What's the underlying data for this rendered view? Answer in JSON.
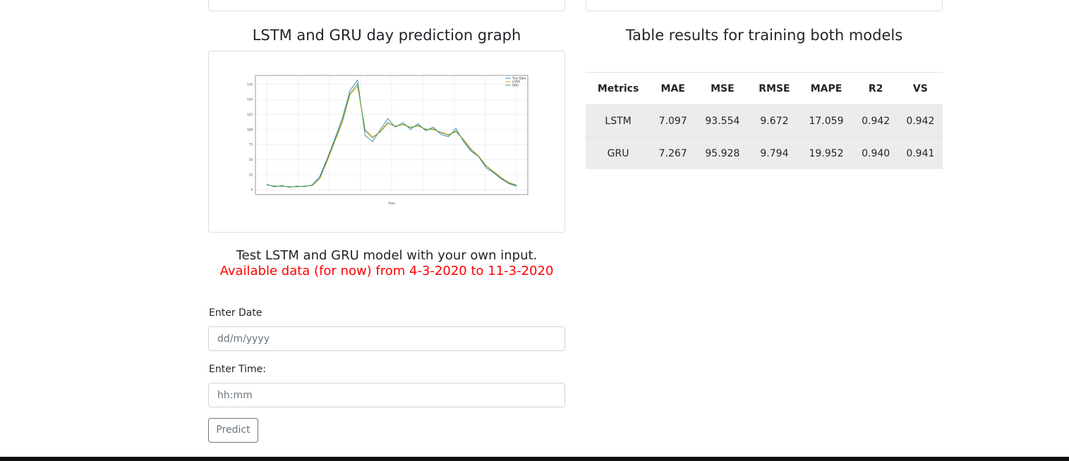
{
  "graph_title": "LSTM and GRU day prediction graph",
  "chart_data": {
    "type": "line",
    "x_label": "Time",
    "series": [
      {
        "name": "True Data",
        "color": "#1f77b4",
        "values": [
          9,
          5,
          7,
          4,
          6,
          5,
          8,
          22,
          52,
          85,
          120,
          165,
          182,
          90,
          80,
          100,
          118,
          104,
          112,
          100,
          110,
          98,
          104,
          92,
          88,
          102,
          80,
          64,
          55,
          36,
          28,
          18,
          10,
          6
        ]
      },
      {
        "name": "LSTM",
        "color": "#ff7f0e",
        "values": [
          8,
          6,
          6,
          5,
          5,
          6,
          7,
          18,
          48,
          80,
          112,
          158,
          172,
          100,
          88,
          96,
          110,
          106,
          108,
          104,
          106,
          101,
          100,
          96,
          92,
          96,
          84,
          68,
          56,
          40,
          30,
          20,
          12,
          8
        ]
      },
      {
        "name": "GRU",
        "color": "#2ca02c",
        "values": [
          8,
          6,
          6,
          5,
          5,
          6,
          7,
          19,
          50,
          82,
          115,
          160,
          176,
          98,
          86,
          97,
          112,
          105,
          109,
          103,
          107,
          100,
          101,
          95,
          90,
          98,
          82,
          66,
          55,
          39,
          29,
          19,
          11,
          7
        ]
      }
    ],
    "ylim": [
      -8,
      190
    ],
    "yticks": [
      0,
      25,
      50,
      75,
      100,
      125,
      150,
      175
    ],
    "grid": true
  },
  "table_title": "Table results for training both models",
  "table": {
    "header": [
      "Metrics",
      "MAE",
      "MSE",
      "RMSE",
      "MAPE",
      "R2",
      "VS"
    ],
    "rows": [
      [
        "LSTM",
        "7.097",
        "93.554",
        "9.672",
        "17.059",
        "0.942",
        "0.942"
      ],
      [
        "GRU",
        "7.267",
        "95.928",
        "9.794",
        "19.952",
        "0.940",
        "0.941"
      ]
    ]
  },
  "form": {
    "heading": "Test LSTM and GRU model with your own input.",
    "note": "Available data (for now) from 4-3-2020 to 11-3-2020",
    "date_label": "Enter Date",
    "date_placeholder": "dd/m/yyyy",
    "time_label": "Enter Time:",
    "time_placeholder": "hh:mm",
    "button": "Predict"
  }
}
